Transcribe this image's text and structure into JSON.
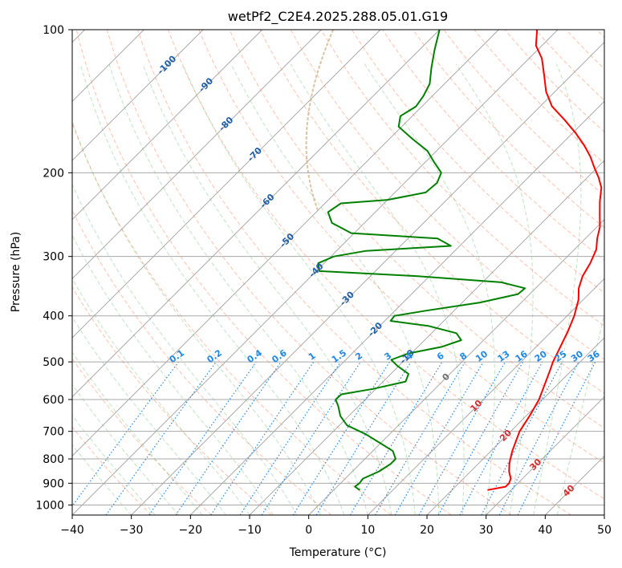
{
  "chart_data": {
    "type": "line",
    "title": "wetPf2_C2E4.2025.288.05.01.G19",
    "xlabel": "Temperature (°C)",
    "ylabel": "Pressure (hPa)",
    "xlim": [
      -40,
      50
    ],
    "ylim": [
      1050,
      100
    ],
    "y_scale": "log",
    "skew": "45 degrees",
    "grid": true,
    "x_ticks": [
      -40,
      -30,
      -20,
      -10,
      0,
      10,
      20,
      30,
      40,
      50
    ],
    "y_ticks": [
      100,
      200,
      300,
      400,
      500,
      600,
      700,
      800,
      900,
      1000
    ],
    "y_tick_labels": [
      "100",
      "200",
      "300",
      "400",
      "500",
      "600",
      "700",
      "800",
      "900",
      "1000"
    ],
    "colors": {
      "temperature": "#ff0000",
      "dewpoint": "#008000",
      "isotherm": "#a0a0a0",
      "dry_adiabat": "#ff8c69",
      "moist_adiabat": "#4caf50",
      "mixing_ratio": "#1e88e5",
      "isotherm_label_cold": "#1f5fa8",
      "isotherm_label_warm": "#d32f2f",
      "zero_label": "#707070",
      "lcl_curve": "#d2b48c"
    },
    "series": [
      {
        "kind": "temperature",
        "points": [
          [
            930,
            26.0
          ],
          [
            915,
            28.5
          ],
          [
            900,
            28.5
          ],
          [
            880,
            28.0
          ],
          [
            850,
            26.5
          ],
          [
            820,
            25.3
          ],
          [
            800,
            24.6
          ],
          [
            770,
            23.6
          ],
          [
            700,
            21.5
          ],
          [
            650,
            20.6
          ],
          [
            600,
            19.4
          ],
          [
            560,
            17.9
          ],
          [
            520,
            16.3
          ],
          [
            500,
            15.4
          ],
          [
            470,
            14.3
          ],
          [
            430,
            12.7
          ],
          [
            400,
            11.2
          ],
          [
            370,
            9.2
          ],
          [
            350,
            7.3
          ],
          [
            330,
            5.9
          ],
          [
            310,
            5.0
          ],
          [
            290,
            3.7
          ],
          [
            275,
            2.0
          ],
          [
            260,
            0.5
          ],
          [
            245,
            -1.6
          ],
          [
            230,
            -3.8
          ],
          [
            215,
            -5.9
          ],
          [
            205,
            -8.0
          ],
          [
            195,
            -10.5
          ],
          [
            185,
            -13.0
          ],
          [
            175,
            -16.0
          ],
          [
            165,
            -19.5
          ],
          [
            155,
            -23.5
          ],
          [
            145,
            -28.0
          ],
          [
            135,
            -31.5
          ],
          [
            125,
            -34.5
          ],
          [
            115,
            -37.8
          ],
          [
            108,
            -41.0
          ],
          [
            100,
            -43.5
          ]
        ]
      },
      {
        "kind": "dewpoint",
        "points": [
          [
            930,
            4.4
          ],
          [
            915,
            3.0
          ],
          [
            900,
            3.2
          ],
          [
            880,
            3.0
          ],
          [
            850,
            4.5
          ],
          [
            820,
            5.2
          ],
          [
            800,
            5.2
          ],
          [
            770,
            3.4
          ],
          [
            740,
            -0.2
          ],
          [
            710,
            -4.0
          ],
          [
            680,
            -8.7
          ],
          [
            650,
            -11.4
          ],
          [
            620,
            -13.4
          ],
          [
            600,
            -15.0
          ],
          [
            585,
            -14.9
          ],
          [
            570,
            -10.5
          ],
          [
            550,
            -6.2
          ],
          [
            530,
            -7.0
          ],
          [
            510,
            -10.2
          ],
          [
            495,
            -12.3
          ],
          [
            480,
            -10.5
          ],
          [
            465,
            -6.0
          ],
          [
            450,
            -3.8
          ],
          [
            435,
            -5.8
          ],
          [
            420,
            -11.8
          ],
          [
            410,
            -19.0
          ],
          [
            400,
            -19.2
          ],
          [
            390,
            -14.7
          ],
          [
            375,
            -7.0
          ],
          [
            360,
            -2.0
          ],
          [
            350,
            -1.8
          ],
          [
            340,
            -6.8
          ],
          [
            330,
            -22.0
          ],
          [
            322,
            -39.5
          ],
          [
            310,
            -41.0
          ],
          [
            300,
            -39.5
          ],
          [
            292,
            -35.0
          ],
          [
            285,
            -21.5
          ],
          [
            275,
            -25.0
          ],
          [
            268,
            -40.5
          ],
          [
            255,
            -45.5
          ],
          [
            242,
            -48.0
          ],
          [
            232,
            -47.3
          ],
          [
            228,
            -40.0
          ],
          [
            220,
            -34.8
          ],
          [
            210,
            -34.5
          ],
          [
            200,
            -35.5
          ],
          [
            190,
            -38.5
          ],
          [
            180,
            -41.5
          ],
          [
            170,
            -46.0
          ],
          [
            160,
            -50.5
          ],
          [
            152,
            -52.0
          ],
          [
            145,
            -51.0
          ],
          [
            138,
            -51.5
          ],
          [
            130,
            -52.5
          ],
          [
            120,
            -55.0
          ],
          [
            110,
            -57.5
          ],
          [
            100,
            -60.0
          ]
        ]
      }
    ],
    "isotherm_labels": [
      {
        "t": -100,
        "p": 118,
        "text": "-100"
      },
      {
        "t": -90,
        "p": 130,
        "text": "-90"
      },
      {
        "t": -80,
        "p": 157,
        "text": "-80"
      },
      {
        "t": -70,
        "p": 182,
        "text": "-70"
      },
      {
        "t": -60,
        "p": 228,
        "text": "-60"
      },
      {
        "t": -50,
        "p": 276,
        "text": "-50"
      },
      {
        "t": -40,
        "p": 319,
        "text": "-40"
      },
      {
        "t": -30,
        "p": 366,
        "text": "-30"
      },
      {
        "t": -20,
        "p": 425,
        "text": "-20"
      },
      {
        "t": -10,
        "p": 485,
        "text": "-10"
      },
      {
        "t": 0,
        "p": 535,
        "text": "0"
      },
      {
        "t": 10,
        "p": 615,
        "text": "10"
      },
      {
        "t": 20,
        "p": 710,
        "text": "20"
      },
      {
        "t": 30,
        "p": 818,
        "text": "30"
      },
      {
        "t": 40,
        "p": 928,
        "text": "40"
      }
    ],
    "mixing_ratio_labels": [
      "0.1",
      "0.2",
      "0.4",
      "0.6",
      "1",
      "1.5",
      "2",
      "3",
      "4",
      "6",
      "8",
      "10",
      "13",
      "16",
      "20",
      "25",
      "30",
      "36"
    ]
  }
}
